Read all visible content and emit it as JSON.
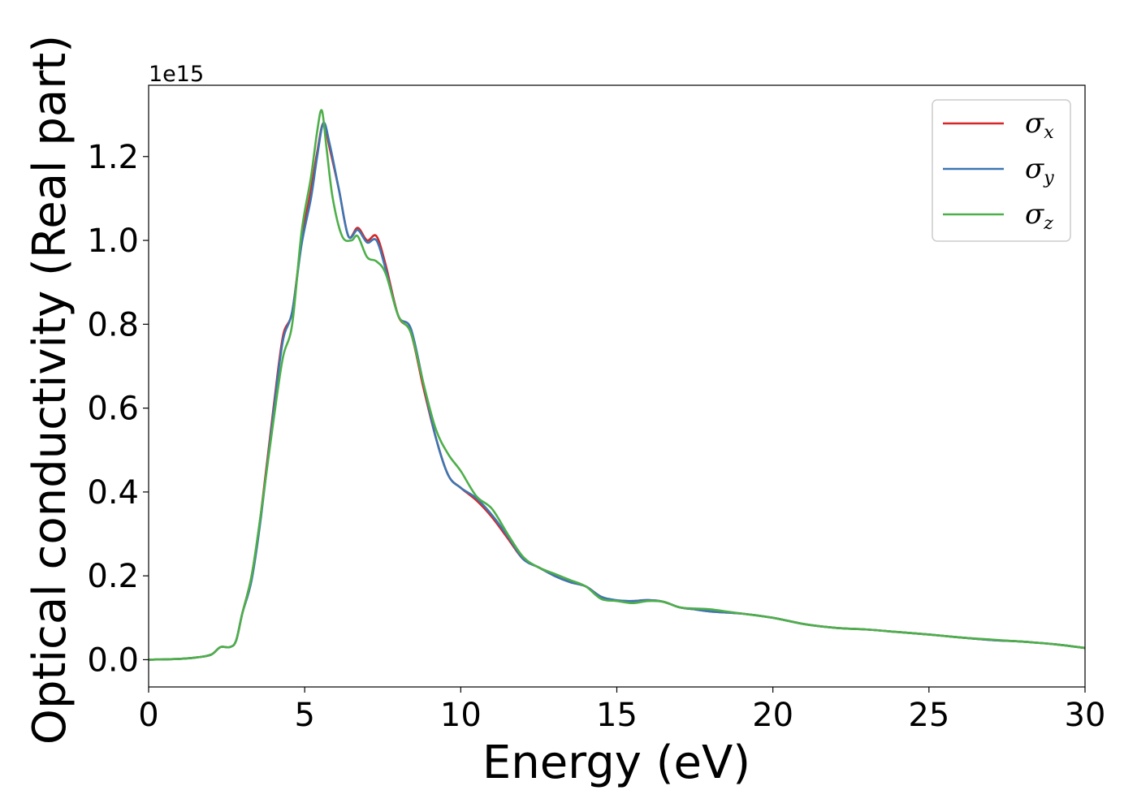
{
  "chart_data": {
    "type": "line",
    "xlabel": "Energy (eV)",
    "ylabel": "Optical conductivity (Real part)",
    "y_offset_label": "1e15",
    "xlim": [
      0,
      30
    ],
    "ylim": [
      -0.065,
      1.37
    ],
    "x_ticks": [
      0,
      5,
      10,
      15,
      20,
      25,
      30
    ],
    "y_ticks": [
      0.0,
      0.2,
      0.4,
      0.6,
      0.8,
      1.0,
      1.2
    ],
    "x_tick_labels": [
      "0",
      "5",
      "10",
      "15",
      "20",
      "25",
      "30"
    ],
    "y_tick_labels": [
      "0.0",
      "0.2",
      "0.4",
      "0.6",
      "0.8",
      "1.0",
      "1.2"
    ],
    "grid": false,
    "legend_position": "top-right",
    "series": [
      {
        "name": "σx",
        "legend_symbol": "σ",
        "legend_sub": "x",
        "color": "#d62728",
        "x": [
          0,
          1,
          1.5,
          2.0,
          2.3,
          2.6,
          2.8,
          3.0,
          3.3,
          3.6,
          4.0,
          4.3,
          4.6,
          4.9,
          5.2,
          5.4,
          5.6,
          5.8,
          6.1,
          6.4,
          6.7,
          7.0,
          7.3,
          7.6,
          8.0,
          8.4,
          8.8,
          9.2,
          9.6,
          10.0,
          10.5,
          11.0,
          11.5,
          12.0,
          12.5,
          13.0,
          13.5,
          14.0,
          14.5,
          15.0,
          15.5,
          16.0,
          16.5,
          17.0,
          17.5,
          18.0,
          19.0,
          20.0,
          21.0,
          22.0,
          23.0,
          24.0,
          25.0,
          26.0,
          27.0,
          28.0,
          29.0,
          30.0
        ],
        "y": [
          0.0,
          0.002,
          0.005,
          0.012,
          0.03,
          0.03,
          0.045,
          0.11,
          0.2,
          0.35,
          0.6,
          0.77,
          0.83,
          1.0,
          1.12,
          1.21,
          1.28,
          1.22,
          1.12,
          1.01,
          1.03,
          1.0,
          1.01,
          0.94,
          0.82,
          0.78,
          0.65,
          0.53,
          0.44,
          0.41,
          0.38,
          0.34,
          0.29,
          0.24,
          0.22,
          0.2,
          0.185,
          0.175,
          0.15,
          0.14,
          0.14,
          0.142,
          0.138,
          0.125,
          0.12,
          0.115,
          0.11,
          0.1,
          0.085,
          0.076,
          0.072,
          0.066,
          0.06,
          0.053,
          0.047,
          0.043,
          0.037,
          0.028
        ]
      },
      {
        "name": "σy",
        "legend_symbol": "σ",
        "legend_sub": "y",
        "color": "#3d76b1",
        "x": [
          0,
          1,
          1.5,
          2.0,
          2.3,
          2.6,
          2.8,
          3.0,
          3.3,
          3.6,
          4.0,
          4.3,
          4.6,
          4.9,
          5.2,
          5.4,
          5.6,
          5.8,
          6.1,
          6.4,
          6.7,
          7.0,
          7.3,
          7.6,
          8.0,
          8.4,
          8.8,
          9.2,
          9.6,
          10.0,
          10.5,
          11.0,
          11.5,
          12.0,
          12.5,
          13.0,
          13.5,
          14.0,
          14.5,
          15.0,
          15.5,
          16.0,
          16.5,
          17.0,
          17.5,
          18.0,
          19.0,
          20.0,
          21.0,
          22.0,
          23.0,
          24.0,
          25.0,
          26.0,
          27.0,
          28.0,
          29.0,
          30.0
        ],
        "y": [
          0.0,
          0.002,
          0.005,
          0.012,
          0.03,
          0.03,
          0.045,
          0.11,
          0.19,
          0.34,
          0.59,
          0.76,
          0.83,
          0.99,
          1.1,
          1.2,
          1.28,
          1.23,
          1.12,
          1.01,
          1.025,
          0.995,
          1.0,
          0.93,
          0.82,
          0.79,
          0.66,
          0.53,
          0.44,
          0.41,
          0.385,
          0.345,
          0.295,
          0.24,
          0.22,
          0.2,
          0.185,
          0.175,
          0.15,
          0.142,
          0.14,
          0.142,
          0.138,
          0.125,
          0.12,
          0.115,
          0.11,
          0.1,
          0.085,
          0.076,
          0.072,
          0.066,
          0.06,
          0.053,
          0.047,
          0.043,
          0.037,
          0.028
        ]
      },
      {
        "name": "σz",
        "legend_symbol": "σ",
        "legend_sub": "z",
        "color": "#4daf4a",
        "x": [
          0,
          1,
          1.5,
          2.0,
          2.3,
          2.6,
          2.8,
          3.0,
          3.3,
          3.6,
          4.0,
          4.3,
          4.6,
          4.9,
          5.2,
          5.4,
          5.55,
          5.7,
          5.9,
          6.2,
          6.5,
          6.7,
          7.0,
          7.3,
          7.6,
          8.0,
          8.4,
          8.8,
          9.2,
          9.6,
          10.0,
          10.5,
          11.0,
          11.5,
          12.0,
          12.5,
          13.0,
          13.5,
          14.0,
          14.5,
          15.0,
          15.5,
          16.0,
          16.5,
          17.0,
          17.5,
          18.0,
          19.0,
          20.0,
          21.0,
          22.0,
          23.0,
          24.0,
          25.0,
          26.0,
          27.0,
          28.0,
          29.0,
          30.0
        ],
        "y": [
          0.0,
          0.002,
          0.005,
          0.012,
          0.03,
          0.03,
          0.045,
          0.11,
          0.2,
          0.35,
          0.57,
          0.72,
          0.8,
          1.02,
          1.15,
          1.26,
          1.31,
          1.22,
          1.1,
          1.01,
          1.0,
          1.01,
          0.96,
          0.95,
          0.92,
          0.82,
          0.78,
          0.66,
          0.55,
          0.49,
          0.45,
          0.39,
          0.36,
          0.3,
          0.245,
          0.22,
          0.205,
          0.19,
          0.175,
          0.145,
          0.14,
          0.135,
          0.14,
          0.138,
          0.125,
          0.122,
          0.12,
          0.11,
          0.1,
          0.085,
          0.076,
          0.072,
          0.066,
          0.06,
          0.053,
          0.048,
          0.043,
          0.037,
          0.028
        ]
      }
    ]
  }
}
